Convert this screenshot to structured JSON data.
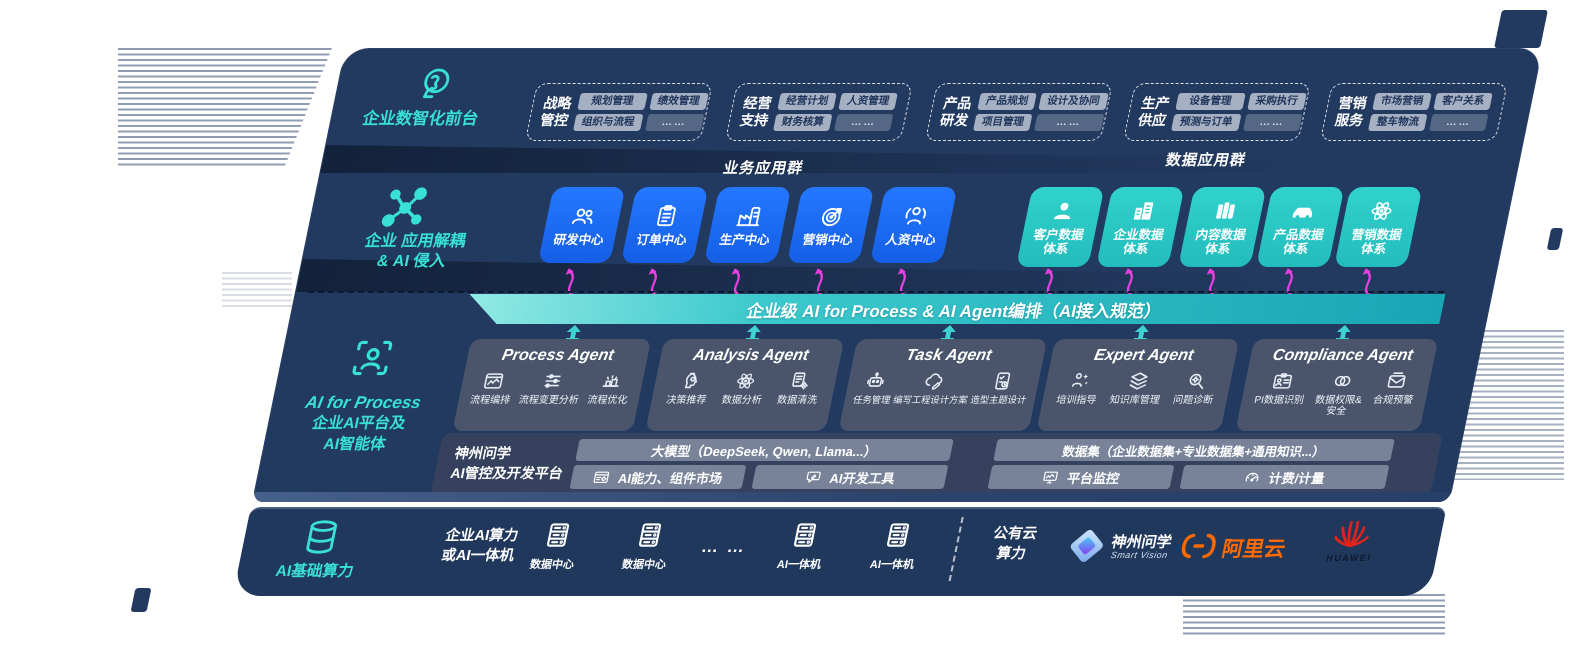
{
  "colors": {
    "slab_navy": "#223a60",
    "accent_teal": "#38e0d6",
    "tile_blue": "#1b6cf2",
    "tile_teal": "#2bc7c3",
    "band_teal": "#3cc9cd",
    "arrow_magenta": "#ec3fe3",
    "alibaba_orange": "#ff6a00",
    "huawei_red": "#e2231a"
  },
  "front_office": {
    "label": "企业数智化前台",
    "icon": "brain-head",
    "groups": [
      {
        "title": [
          "战略",
          "管控"
        ],
        "items": [
          "规划管理",
          "绩效管理",
          "组织与流程",
          "……"
        ]
      },
      {
        "title": [
          "经营",
          "支持"
        ],
        "items": [
          "经营计划",
          "人资管理",
          "财务核算",
          "……"
        ]
      },
      {
        "title": [
          "产品",
          "研发"
        ],
        "items": [
          "产品规划",
          "设计及协同",
          "项目管理",
          "……"
        ]
      },
      {
        "title": [
          "生产",
          "供应"
        ],
        "items": [
          "设备管理",
          "采购执行",
          "预测与订单",
          "……"
        ]
      },
      {
        "title": [
          "营销",
          "服务"
        ],
        "items": [
          "市场营销",
          "客户关系",
          "整车物流",
          "……"
        ]
      }
    ]
  },
  "decouple_layer": {
    "icon": "molecule",
    "label_line1": "企业 应用解耦",
    "label_line2": "& AI 侵入",
    "business_group": {
      "heading": "业务应用群",
      "tiles": [
        {
          "label": "研发中心",
          "icon": "team"
        },
        {
          "label": "订单中心",
          "icon": "clipboard"
        },
        {
          "label": "生产中心",
          "icon": "factory"
        },
        {
          "label": "营销中心",
          "icon": "target"
        },
        {
          "label": "人资中心",
          "icon": "people-signal"
        }
      ]
    },
    "data_group": {
      "heading": "数据应用群",
      "tiles": [
        {
          "lines": [
            "客户数据",
            "体系"
          ],
          "icon": "user"
        },
        {
          "lines": [
            "企业数据",
            "体系"
          ],
          "icon": "building"
        },
        {
          "lines": [
            "内容数据",
            "体系"
          ],
          "icon": "files"
        },
        {
          "lines": [
            "产品数据",
            "体系"
          ],
          "icon": "car"
        },
        {
          "lines": [
            "营销数据",
            "体系"
          ],
          "icon": "atom"
        }
      ]
    }
  },
  "orchestration_band": {
    "label": "企业级 AI for Process & AI Agent编排（AI接入规范）"
  },
  "ai_platform": {
    "icon": "person-frame",
    "label_lines": [
      "AI for Process",
      "企业AI平台及",
      "AI智能体"
    ],
    "agents": [
      {
        "title": "Process Agent",
        "capabilities": [
          {
            "label": "流程编排",
            "icon": "flow-chart"
          },
          {
            "label": "流程变更分析",
            "icon": "sliders"
          },
          {
            "label": "流程优化",
            "icon": "conveyor"
          }
        ]
      },
      {
        "title": "Analysis Agent",
        "capabilities": [
          {
            "label": "决策推荐",
            "icon": "head-gear"
          },
          {
            "label": "数据分析",
            "icon": "atom"
          },
          {
            "label": "数据清洗",
            "icon": "doc-clean"
          }
        ]
      },
      {
        "title": "Task Agent",
        "capabilities": [
          {
            "label": "任务管理",
            "icon": "robot"
          },
          {
            "label": "编写工程设计方案",
            "icon": "cloud-edit"
          },
          {
            "label": "造型主题设计",
            "icon": "checklist"
          }
        ]
      },
      {
        "title": "Expert Agent",
        "capabilities": [
          {
            "label": "培训指导",
            "icon": "training"
          },
          {
            "label": "知识库管理",
            "icon": "layers"
          },
          {
            "label": "问题诊断",
            "icon": "diagnose"
          }
        ]
      },
      {
        "title": "Compliance Agent",
        "capabilities": [
          {
            "label": "PI数据识别",
            "icon": "id-card"
          },
          {
            "lines": [
              "数据权限&",
              "安全"
            ],
            "icon": "link-rings"
          },
          {
            "label": "合规预警",
            "icon": "mail-doc"
          }
        ]
      }
    ]
  },
  "dev_platform": {
    "label_lines": [
      "神州问学",
      "AI管控及开发平台"
    ],
    "model_bar": "大模型（DeepSeek, Qwen, Llama...）",
    "dataset_bar": "数据集（企业数据集+专业数据集+通用知识...）",
    "tools": [
      {
        "label": "AI能力、组件市场",
        "icon": "window-gear"
      },
      {
        "label": "AI开发工具",
        "icon": "chat-tools"
      },
      {
        "label": "平台监控",
        "icon": "monitor"
      },
      {
        "label": "计费/计量",
        "icon": "gauge"
      }
    ]
  },
  "infra": {
    "label": "AI基础算力",
    "icon": "database",
    "compute_label_lines": [
      "企业AI算力",
      "或AI一体机"
    ],
    "nodes": [
      {
        "label": "数据中心",
        "icon": "server"
      },
      {
        "label": "数据中心",
        "icon": "server"
      },
      {
        "text": "… …"
      },
      {
        "label": "AI一体机",
        "icon": "server"
      },
      {
        "label": "AI一体机",
        "icon": "server"
      }
    ],
    "public_cloud_lines": [
      "公有云",
      "算力"
    ],
    "partners": [
      {
        "name": "神州问学",
        "sub": "Smart Vision",
        "icon": "sv-diamond"
      },
      {
        "name": "阿里云",
        "icon": "alibaba"
      },
      {
        "name": "HUAWEI",
        "icon": "huawei"
      }
    ]
  }
}
